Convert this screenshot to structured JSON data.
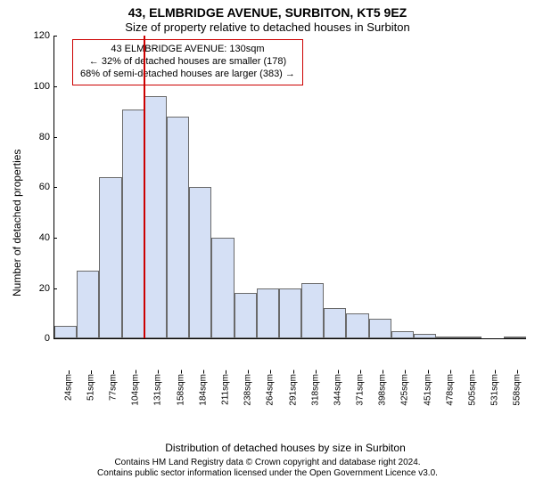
{
  "title": "43, ELMBRIDGE AVENUE, SURBITON, KT5 9EZ",
  "subtitle": "Size of property relative to detached houses in Surbiton",
  "chart": {
    "type": "histogram",
    "ylabel": "Number of detached properties",
    "xlabel": "Distribution of detached houses by size in Surbiton",
    "ylim_max": 120,
    "ytick_step": 20,
    "yticks": [
      0,
      20,
      40,
      60,
      80,
      100,
      120
    ],
    "bar_fill": "#d5e0f5",
    "bar_border": "#6a6a6a",
    "background": "#ffffff",
    "marker_color": "#cc0000",
    "annotation_border": "#cc0000",
    "xticks": [
      "24sqm",
      "51sqm",
      "77sqm",
      "104sqm",
      "131sqm",
      "158sqm",
      "184sqm",
      "211sqm",
      "238sqm",
      "264sqm",
      "291sqm",
      "318sqm",
      "344sqm",
      "371sqm",
      "398sqm",
      "425sqm",
      "451sqm",
      "478sqm",
      "505sqm",
      "531sqm",
      "558sqm"
    ],
    "values": [
      5,
      27,
      64,
      91,
      96,
      88,
      60,
      40,
      18,
      20,
      20,
      22,
      12,
      10,
      8,
      3,
      2,
      1,
      1,
      0,
      1
    ],
    "marker_index_position": 4.0,
    "annotation": {
      "line1": "43 ELMBRIDGE AVENUE: 130sqm",
      "line2": "← 32% of detached houses are smaller (178)",
      "line3": "68% of semi-detached houses are larger (383) →"
    }
  },
  "footer_line1": "Contains HM Land Registry data © Crown copyright and database right 2024.",
  "footer_line2": "Contains public sector information licensed under the Open Government Licence v3.0."
}
